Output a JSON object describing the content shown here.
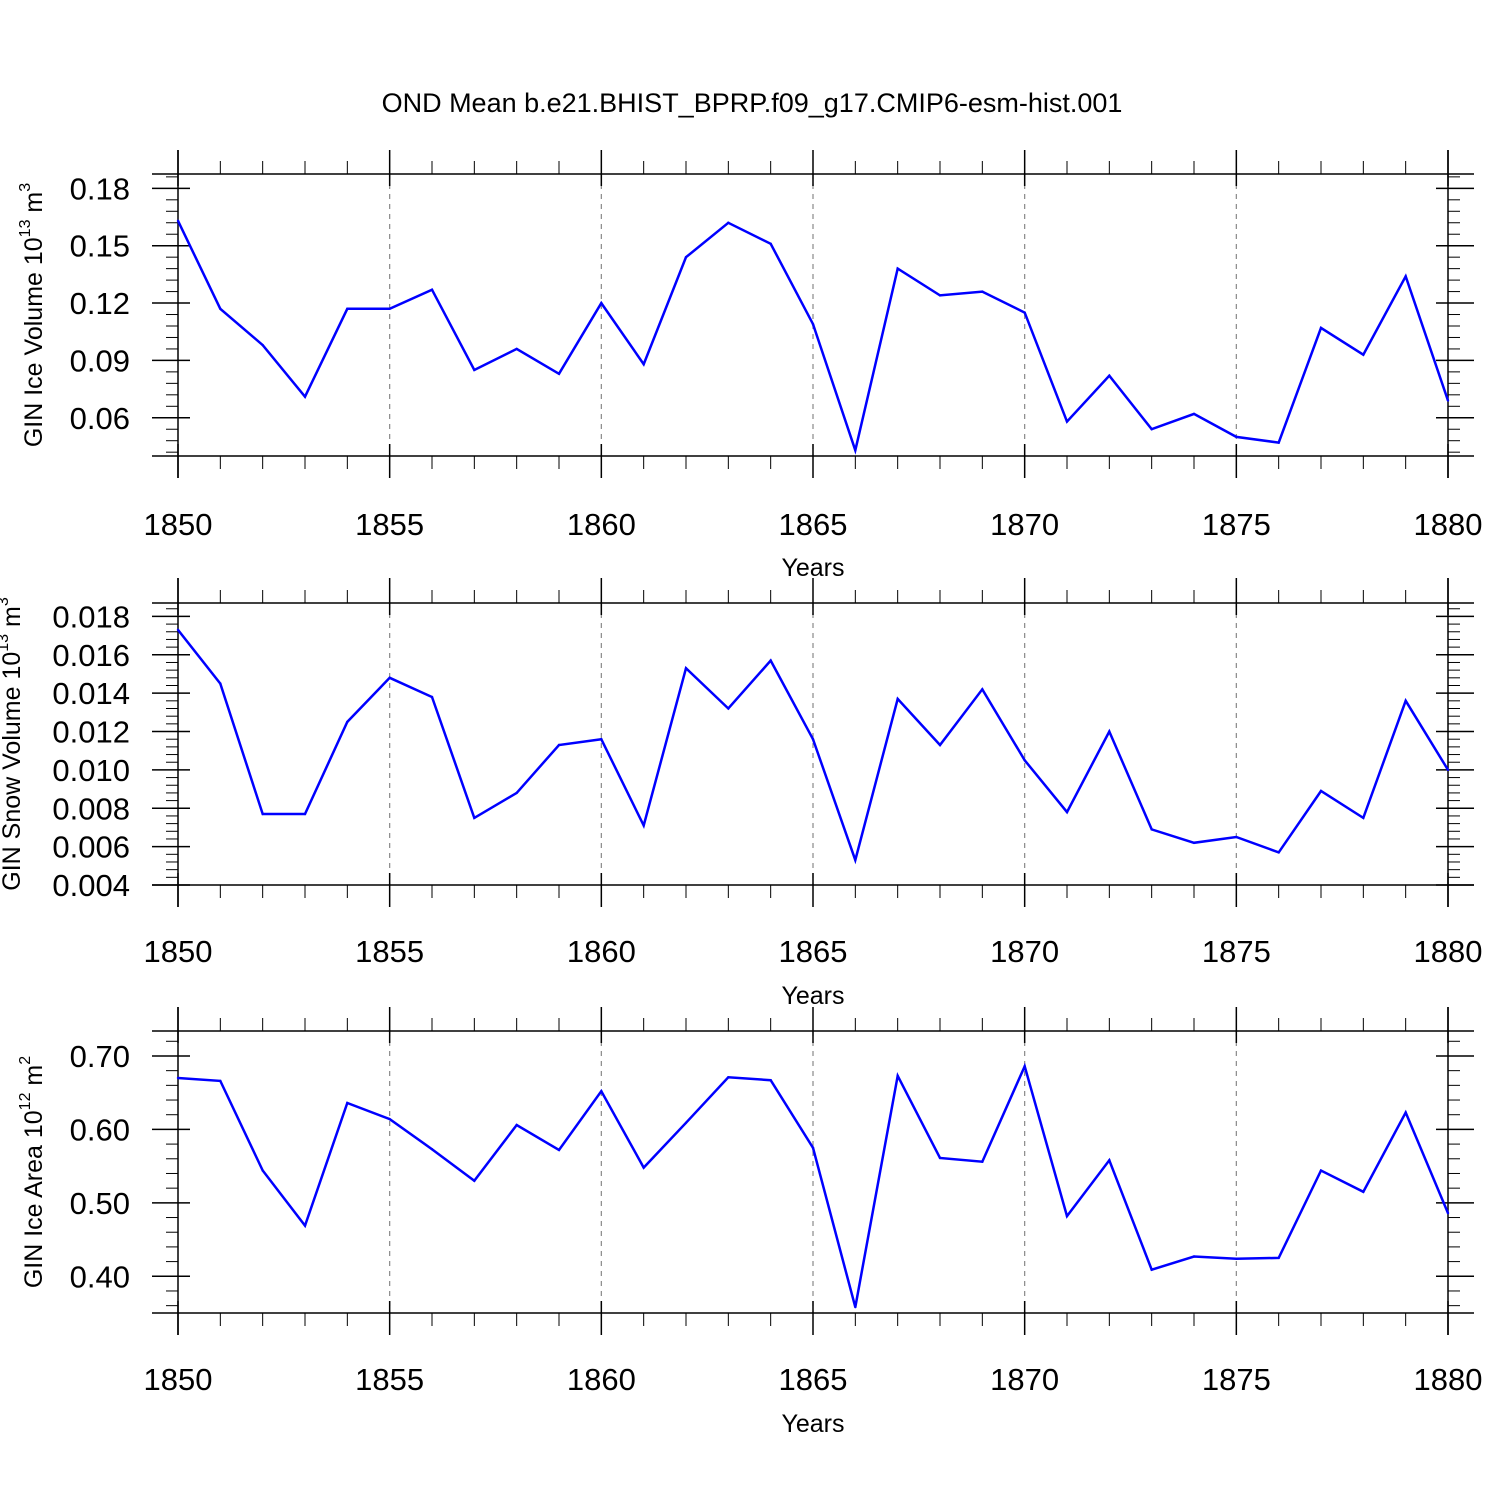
{
  "title": "OND Mean b.e21.BHIST_BPRP.f09_g17.CMIP6-esm-hist.001",
  "colors": {
    "series": "#0000ff",
    "axis": "#000000",
    "grid": "#888888"
  },
  "chart_data": [
    {
      "type": "line",
      "xlabel": "Years",
      "ylabel": {
        "text": "GIN Ice Volume 10",
        "exp": "13",
        "unit": " m",
        "unit_exp": "3"
      },
      "xlim": [
        1850,
        1880
      ],
      "ylim": [
        0.04,
        0.1875
      ],
      "xticks": [
        1850,
        1855,
        1860,
        1865,
        1870,
        1875,
        1880
      ],
      "xtick_labels": [
        "1850",
        "1855",
        "1860",
        "1865",
        "1870",
        "1875",
        "1880"
      ],
      "yticks": [
        0.06,
        0.09,
        0.12,
        0.15,
        0.18
      ],
      "ytick_labels": [
        "0.06",
        "0.09",
        "0.12",
        "0.15",
        "0.18"
      ],
      "grid_x": true,
      "x": [
        1850,
        1851,
        1852,
        1853,
        1854,
        1855,
        1856,
        1857,
        1858,
        1859,
        1860,
        1861,
        1862,
        1863,
        1864,
        1865,
        1866,
        1867,
        1868,
        1869,
        1870,
        1871,
        1872,
        1873,
        1874,
        1875,
        1876,
        1877,
        1878,
        1879,
        1880
      ],
      "values": [
        0.163,
        0.117,
        0.098,
        0.071,
        0.117,
        0.117,
        0.127,
        0.085,
        0.096,
        0.083,
        0.12,
        0.088,
        0.144,
        0.162,
        0.151,
        0.109,
        0.043,
        0.138,
        0.124,
        0.126,
        0.115,
        0.058,
        0.082,
        0.054,
        0.062,
        0.05,
        0.047,
        0.107,
        0.093,
        0.134,
        0.069
      ]
    },
    {
      "type": "line",
      "xlabel": "Years",
      "ylabel": {
        "text": "GIN Snow Volume 10",
        "exp": "13",
        "unit": " m",
        "unit_exp": "3"
      },
      "xlim": [
        1850,
        1880
      ],
      "ylim": [
        0.004,
        0.0187
      ],
      "xticks": [
        1850,
        1855,
        1860,
        1865,
        1870,
        1875,
        1880
      ],
      "xtick_labels": [
        "1850",
        "1855",
        "1860",
        "1865",
        "1870",
        "1875",
        "1880"
      ],
      "yticks": [
        0.004,
        0.006,
        0.008,
        0.01,
        0.012,
        0.014,
        0.016,
        0.018
      ],
      "ytick_labels": [
        "0.004",
        "0.006",
        "0.008",
        "0.010",
        "0.012",
        "0.014",
        "0.016",
        "0.018"
      ],
      "grid_x": true,
      "x": [
        1850,
        1851,
        1852,
        1853,
        1854,
        1855,
        1856,
        1857,
        1858,
        1859,
        1860,
        1861,
        1862,
        1863,
        1864,
        1865,
        1866,
        1867,
        1868,
        1869,
        1870,
        1871,
        1872,
        1873,
        1874,
        1875,
        1876,
        1877,
        1878,
        1879,
        1880
      ],
      "values": [
        0.0173,
        0.0145,
        0.0077,
        0.0077,
        0.0125,
        0.0148,
        0.0138,
        0.0075,
        0.0088,
        0.0113,
        0.0116,
        0.0071,
        0.0153,
        0.0132,
        0.0157,
        0.0116,
        0.0053,
        0.0137,
        0.0113,
        0.0142,
        0.0105,
        0.0078,
        0.012,
        0.0069,
        0.0062,
        0.0065,
        0.0057,
        0.0089,
        0.0075,
        0.0136,
        0.01
      ]
    },
    {
      "type": "line",
      "xlabel": "Years",
      "ylabel": {
        "text": "GIN Ice Area 10",
        "exp": "12",
        "unit": " m",
        "unit_exp": "2"
      },
      "xlim": [
        1850,
        1880
      ],
      "ylim": [
        0.35,
        0.734
      ],
      "xticks": [
        1850,
        1855,
        1860,
        1865,
        1870,
        1875,
        1880
      ],
      "xtick_labels": [
        "1850",
        "1855",
        "1860",
        "1865",
        "1870",
        "1875",
        "1880"
      ],
      "yticks": [
        0.4,
        0.5,
        0.6,
        0.7
      ],
      "ytick_labels": [
        "0.40",
        "0.50",
        "0.60",
        "0.70"
      ],
      "grid_x": true,
      "x": [
        1850,
        1851,
        1852,
        1853,
        1854,
        1855,
        1856,
        1857,
        1858,
        1859,
        1860,
        1861,
        1862,
        1863,
        1864,
        1865,
        1866,
        1867,
        1868,
        1869,
        1870,
        1871,
        1872,
        1873,
        1874,
        1875,
        1876,
        1877,
        1878,
        1879,
        1880
      ],
      "values": [
        0.67,
        0.666,
        0.544,
        0.469,
        0.636,
        0.614,
        0.573,
        0.53,
        0.606,
        0.572,
        0.652,
        0.548,
        0.609,
        0.671,
        0.667,
        0.575,
        0.358,
        0.673,
        0.561,
        0.556,
        0.686,
        0.482,
        0.558,
        0.409,
        0.427,
        0.424,
        0.425,
        0.544,
        0.515,
        0.623,
        0.486
      ]
    }
  ]
}
